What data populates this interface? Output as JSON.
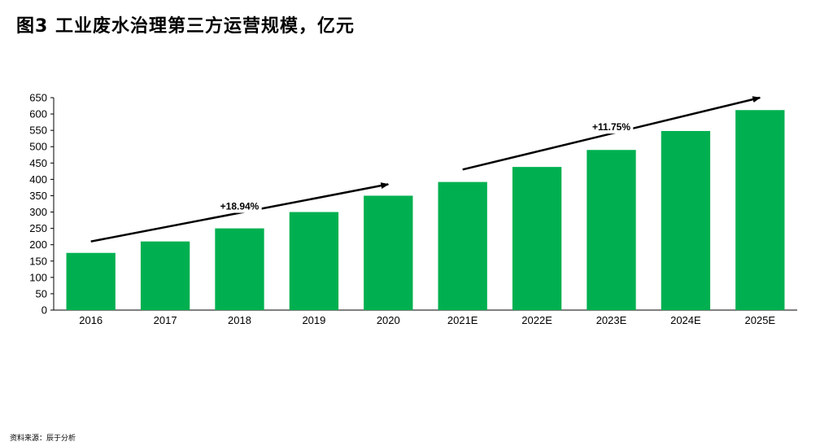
{
  "title": "图3 工业废水治理第三方运营规模，亿元",
  "source": "资料来源：辰于分析",
  "chart_data": {
    "type": "bar",
    "categories": [
      "2016",
      "2017",
      "2018",
      "2019",
      "2020",
      "2021E",
      "2022E",
      "2023E",
      "2024E",
      "2025E"
    ],
    "values": [
      175,
      210,
      250,
      300,
      350,
      392,
      438,
      490,
      548,
      612
    ],
    "ylim": [
      0,
      650
    ],
    "yticks": [
      0,
      50,
      100,
      150,
      200,
      250,
      300,
      350,
      400,
      450,
      500,
      550,
      600,
      650
    ],
    "bar_color": "#00b050",
    "annotations": [
      {
        "label": "+18.94%",
        "from_category": "2016",
        "to_category": "2020",
        "from_value": 210,
        "to_value": 385
      },
      {
        "label": "+11.75%",
        "from_category": "2021E",
        "to_category": "2025E",
        "from_value": 430,
        "to_value": 650
      }
    ],
    "grid": false,
    "legend": "none"
  }
}
